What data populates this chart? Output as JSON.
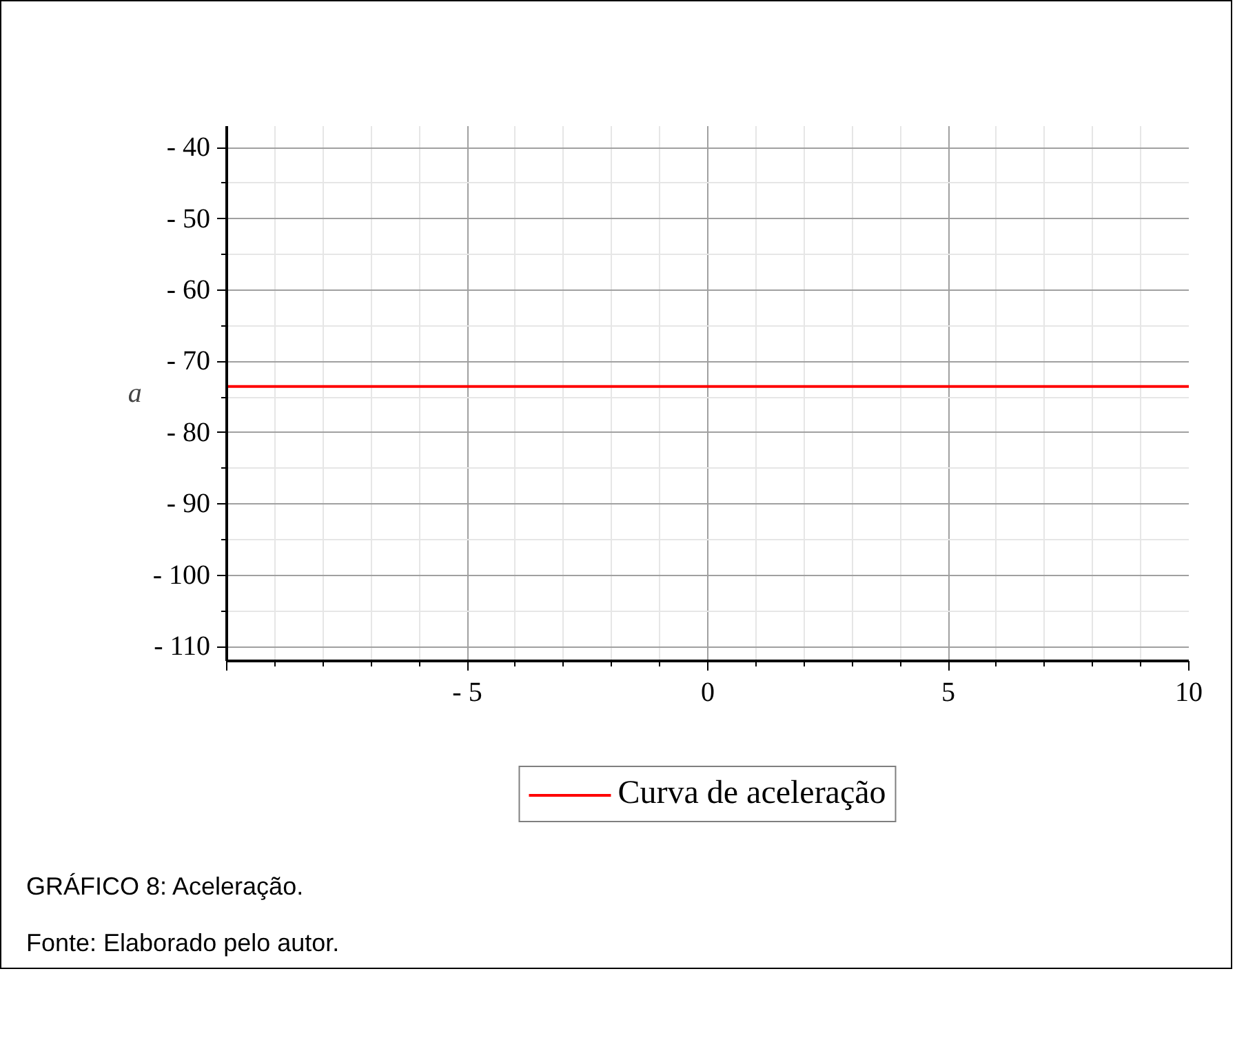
{
  "chart_data": {
    "type": "line",
    "ylabel": "a",
    "x": [
      -10,
      10
    ],
    "series": [
      {
        "name": "Curva de aceleração",
        "color": "#ff0000",
        "values": [
          -73.5,
          -73.5
        ]
      }
    ],
    "xlim": [
      -10,
      10
    ],
    "ylim": [
      -112,
      -37
    ],
    "xticks": [
      {
        "value": -10,
        "label": null
      },
      -5,
      0,
      5,
      10
    ],
    "yticks": [
      -110,
      -100,
      -90,
      -80,
      -70,
      -60,
      -50,
      -40
    ],
    "grid": true,
    "legend": "bottom",
    "line_style": "solid",
    "annotations": [
      "GRÁFICO 8: Aceleração.",
      "Fonte: Elaborado pelo autor."
    ]
  }
}
